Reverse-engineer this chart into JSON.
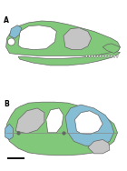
{
  "background": "#ffffff",
  "label_A": "A",
  "label_B": "B",
  "green": "#82c87a",
  "blue": "#85bdd4",
  "gray": "#c5c5c5",
  "white": "#ffffff",
  "outline": "#666666",
  "dark": "#333333",
  "scale_bar_color": "#111111",
  "lw": 0.5
}
